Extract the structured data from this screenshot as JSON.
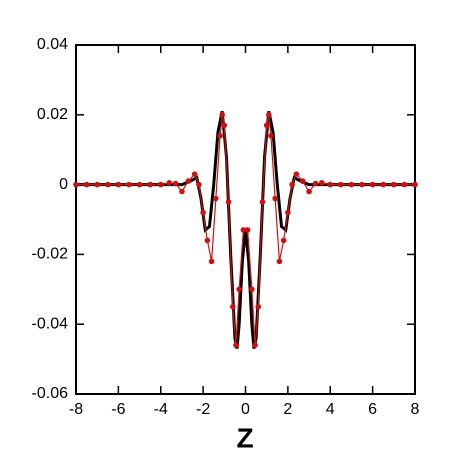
{
  "chart_data": {
    "type": "line",
    "x_label": "Z",
    "xlim": [
      -8,
      8
    ],
    "xticks": [
      -8,
      -6,
      -4,
      -2,
      0,
      2,
      4,
      6,
      8
    ],
    "ylim": [
      -0.06,
      0.04
    ],
    "yticks": [
      -0.06,
      -0.04,
      -0.02,
      0,
      0.02,
      0.04
    ],
    "series": [
      {
        "color": "#000000",
        "markers": false,
        "x": [
          -8,
          -6,
          -4,
          -3,
          -2.6,
          -2.3,
          -2.1,
          -1.9,
          -1.7,
          -1.5,
          -1.3,
          -1.1,
          -0.9,
          -0.7,
          -0.5,
          -0.4,
          -0.3,
          -0.15,
          0,
          0.15,
          0.3,
          0.4,
          0.5,
          0.7,
          0.9,
          1.1,
          1.3,
          1.5,
          1.7,
          1.9,
          2.1,
          2.3,
          2.6,
          3,
          4,
          6,
          8
        ],
        "values": [
          0,
          0,
          0,
          0,
          0.001,
          0.002,
          -0.004,
          -0.013,
          -0.012,
          0,
          0.015,
          0.021,
          0.008,
          -0.02,
          -0.044,
          -0.047,
          -0.04,
          -0.022,
          -0.013,
          -0.022,
          -0.04,
          -0.047,
          -0.044,
          -0.02,
          0.008,
          0.021,
          0.015,
          0,
          -0.012,
          -0.013,
          -0.004,
          0.002,
          0.001,
          0,
          0,
          0,
          0
        ]
      },
      {
        "color": "#cc1111",
        "markers": true,
        "x": [
          -8,
          -7.5,
          -7,
          -6.5,
          -6,
          -5.5,
          -5,
          -4.5,
          -4,
          -3.6,
          -3.3,
          -3,
          -2.7,
          -2.4,
          -2.2,
          -2,
          -1.8,
          -1.6,
          -1.4,
          -1.2,
          -1.1,
          -1,
          -0.8,
          -0.6,
          -0.45,
          -0.3,
          -0.1,
          0.1,
          0.3,
          0.45,
          0.6,
          0.8,
          1,
          1.1,
          1.2,
          1.4,
          1.6,
          1.8,
          2,
          2.2,
          2.4,
          2.7,
          3,
          3.3,
          3.6,
          4,
          4.5,
          5,
          5.5,
          6,
          6.5,
          7,
          7.5,
          8
        ],
        "values": [
          0,
          0,
          0,
          0,
          0,
          0,
          0,
          0,
          0,
          0.0005,
          0.0003,
          -0.002,
          0.001,
          0.003,
          0,
          -0.008,
          -0.016,
          -0.022,
          -0.004,
          0.014,
          0.02,
          0.017,
          -0.005,
          -0.035,
          -0.046,
          -0.03,
          -0.013,
          -0.013,
          -0.03,
          -0.046,
          -0.035,
          -0.005,
          0.017,
          0.02,
          0.014,
          -0.004,
          -0.022,
          -0.016,
          -0.008,
          0,
          0.003,
          0.001,
          -0.002,
          0.0003,
          0.0005,
          0,
          0,
          0,
          0,
          0,
          0,
          0,
          0,
          0
        ]
      }
    ]
  }
}
